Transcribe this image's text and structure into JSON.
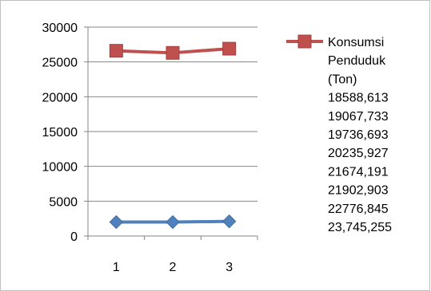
{
  "chart_data": {
    "type": "line",
    "x": [
      1,
      2,
      3
    ],
    "ylim": [
      0,
      30000
    ],
    "yticks": [
      "0",
      "5000",
      "10000",
      "15000",
      "20000",
      "25000",
      "30000"
    ],
    "xticks": [
      "1",
      "2",
      "3"
    ],
    "grid": true,
    "legend_position": "right",
    "series": [
      {
        "name": "Konsumsi Penduduk (Ton) 18588,613 19067,733 19736,693 20235,927 21674,191 21902,903 22776,845 23,745,255",
        "values": [
          26600,
          26300,
          26900
        ],
        "color": "#c0504d",
        "marker": "square"
      },
      {
        "values": [
          2000,
          2000,
          2100
        ],
        "color": "#4f81bd",
        "marker": "diamond"
      }
    ],
    "legend_lines": [
      "Konsumsi",
      "Penduduk",
      "(Ton)",
      "18588,613",
      "19067,733",
      "19736,693",
      "20235,927",
      "21674,191",
      "21902,903",
      "22776,845",
      "23,745,255"
    ]
  }
}
